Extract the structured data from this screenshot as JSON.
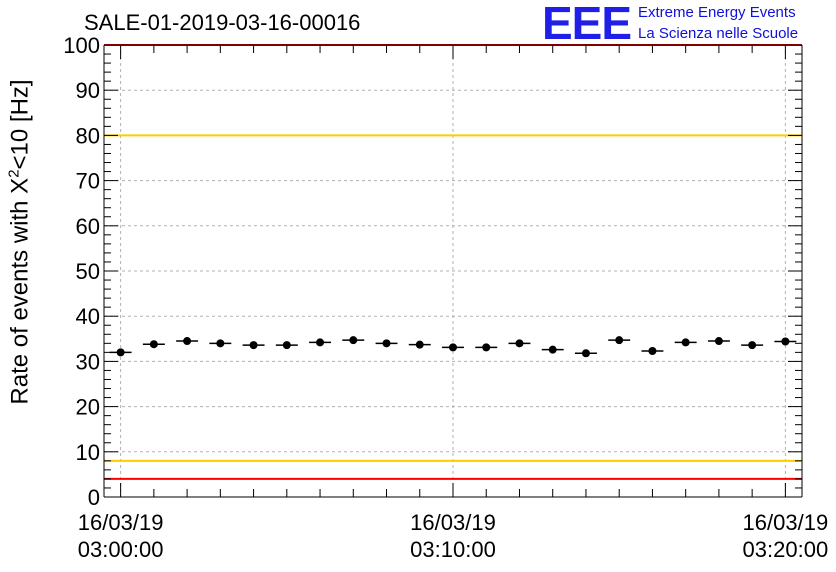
{
  "header": {
    "title": "SALE-01-2019-03-16-00016",
    "logo_mark": "EEE",
    "logo_line1": "Extreme Energy Events",
    "logo_line2": "La Scienza nelle Scuole"
  },
  "axis_labels": {
    "y_prefix": "Rate of events with X",
    "y_sup": "2",
    "y_suffix": "<10 [Hz]"
  },
  "chart_data": {
    "type": "scatter",
    "title": "SALE-01-2019-03-16-00016",
    "ylabel": "Rate of events with X²<10 [Hz]",
    "xlabel": "",
    "ylim": [
      0,
      100
    ],
    "xlim_minutes": [
      -0.5,
      20.5
    ],
    "y_ticks": [
      0,
      10,
      20,
      30,
      40,
      50,
      60,
      70,
      80,
      90,
      100
    ],
    "x_ticks": [
      {
        "minute": 0,
        "date": "16/03/19",
        "time": "03:00:00"
      },
      {
        "minute": 10,
        "date": "16/03/19",
        "time": "03:10:00"
      },
      {
        "minute": 20,
        "date": "16/03/19",
        "time": "03:20:00"
      }
    ],
    "grid": true,
    "series": [
      {
        "x": [
          0,
          1,
          2,
          3,
          4,
          5,
          6,
          7,
          8,
          9,
          10,
          11,
          12,
          13,
          14,
          15,
          16,
          17,
          18,
          19,
          20
        ],
        "y": [
          32,
          33.8,
          34.5,
          34,
          33.6,
          33.6,
          34.2,
          34.7,
          34,
          33.7,
          33.1,
          33.1,
          34,
          32.6,
          31.8,
          34.7,
          32.3,
          34.2,
          34.5,
          33.6,
          34.4
        ],
        "x_half_width": 0.33
      }
    ],
    "reference_lines": [
      {
        "y": 100,
        "color": "#ff0000"
      },
      {
        "y": 80,
        "color": "#ffcc00"
      },
      {
        "y": 8,
        "color": "#ffcc00"
      },
      {
        "y": 4,
        "color": "#ff0000"
      }
    ]
  }
}
